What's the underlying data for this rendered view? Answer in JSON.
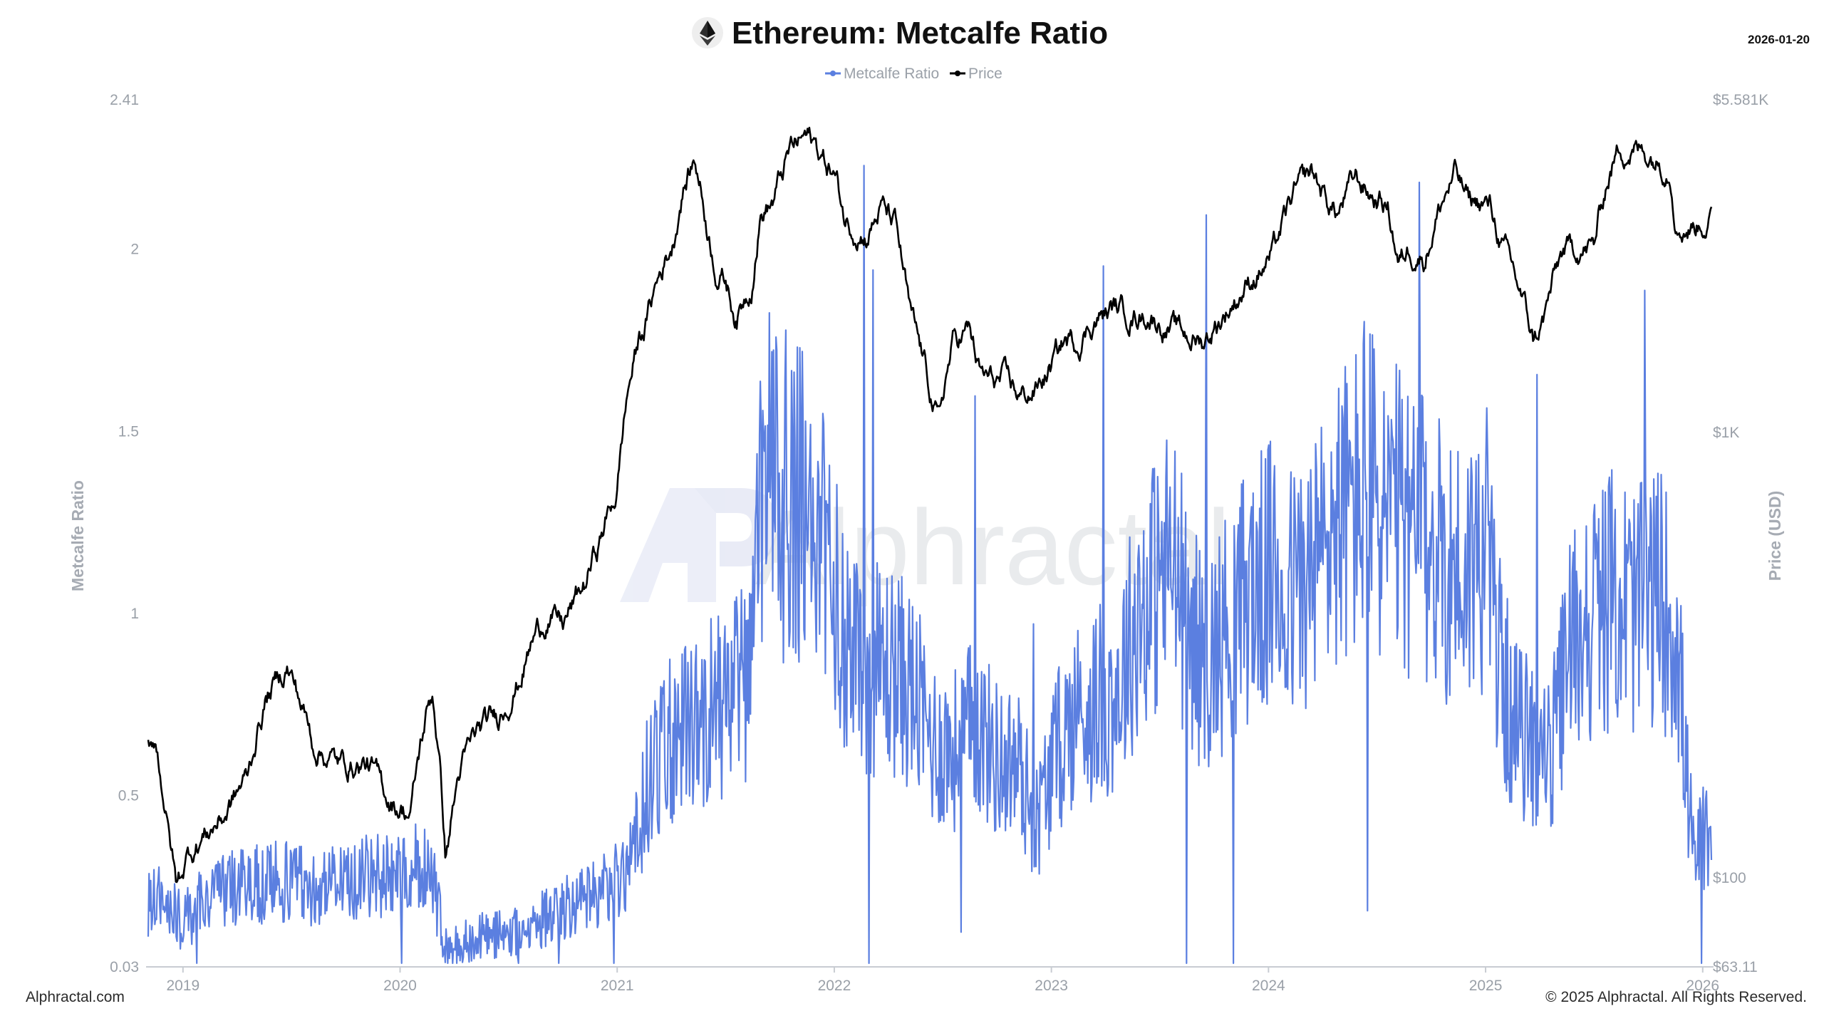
{
  "header": {
    "title": "Ethereum: Metcalfe Ratio",
    "date": "2026-01-20",
    "logo_icon": "ethereum-diamond-icon"
  },
  "watermark": {
    "text": "Alphractal",
    "logo_icon": "ap-monogram-icon"
  },
  "footer": {
    "left": "Alphractal.com",
    "right": "© 2025 Alphractal. All Rights Reserved."
  },
  "colors": {
    "ratio": "#5b7fe0",
    "price": "#000000",
    "axis": "#c8ccd2",
    "tick": "#9aa0a8"
  },
  "chart_data": {
    "type": "line",
    "title": "Ethereum: Metcalfe Ratio",
    "legend": [
      "Metcalfe Ratio",
      "Price"
    ],
    "legend_position": "top-center",
    "grid": false,
    "x_range": [
      2018.83,
      2026.05
    ],
    "x_ticks": [
      {
        "value": 2019,
        "label": "2019"
      },
      {
        "value": 2020,
        "label": "2020"
      },
      {
        "value": 2021,
        "label": "2021"
      },
      {
        "value": 2022,
        "label": "2022"
      },
      {
        "value": 2023,
        "label": "2023"
      },
      {
        "value": 2024,
        "label": "2024"
      },
      {
        "value": 2025,
        "label": "2025"
      },
      {
        "value": 2026,
        "label": "2026"
      }
    ],
    "y_left": {
      "label": "Metcalfe Ratio",
      "range": [
        0.03,
        2.41
      ],
      "ticks": [
        {
          "value": 0.03,
          "label": "0.03"
        },
        {
          "value": 0.5,
          "label": "0.5"
        },
        {
          "value": 1,
          "label": "1"
        },
        {
          "value": 1.5,
          "label": "1.5"
        },
        {
          "value": 2,
          "label": "2"
        },
        {
          "value": 2.41,
          "label": "2.41"
        }
      ]
    },
    "y_right": {
      "label": "Price (USD)",
      "scale": "log",
      "range": [
        63.11,
        5581
      ],
      "ticks": [
        {
          "value": 63.11,
          "label": "$63.11"
        },
        {
          "value": 100,
          "label": "$100"
        },
        {
          "value": 1000,
          "label": "$1K"
        },
        {
          "value": 5581,
          "label": "$5.581K"
        }
      ]
    },
    "series": [
      {
        "name": "Metcalfe Ratio",
        "axis": "left",
        "x": [
          2018.84,
          2018.9,
          2019.0,
          2019.1,
          2019.2,
          2019.3,
          2019.4,
          2019.5,
          2019.6,
          2019.7,
          2019.8,
          2019.9,
          2020.0,
          2020.08,
          2020.15,
          2020.21,
          2020.3,
          2020.4,
          2020.5,
          2020.6,
          2020.7,
          2020.8,
          2020.9,
          2021.0,
          2021.08,
          2021.15,
          2021.25,
          2021.35,
          2021.45,
          2021.55,
          2021.62,
          2021.65,
          2021.7,
          2021.75,
          2021.8,
          2021.88,
          2021.95,
          2022.05,
          2022.15,
          2022.25,
          2022.35,
          2022.45,
          2022.55,
          2022.65,
          2022.75,
          2022.85,
          2022.93,
          2023.0,
          2023.1,
          2023.2,
          2023.3,
          2023.4,
          2023.5,
          2023.55,
          2023.62,
          2023.7,
          2023.8,
          2023.9,
          2024.0,
          2024.1,
          2024.2,
          2024.3,
          2024.4,
          2024.45,
          2024.5,
          2024.6,
          2024.7,
          2024.8,
          2024.9,
          2025.0,
          2025.06,
          2025.12,
          2025.2,
          2025.3,
          2025.4,
          2025.5,
          2025.6,
          2025.7,
          2025.8,
          2025.88,
          2025.92,
          2025.96,
          2026.0,
          2026.04
        ],
        "y": [
          0.2,
          0.22,
          0.15,
          0.22,
          0.24,
          0.25,
          0.26,
          0.27,
          0.25,
          0.26,
          0.27,
          0.28,
          0.3,
          0.3,
          0.28,
          0.08,
          0.1,
          0.12,
          0.12,
          0.14,
          0.18,
          0.2,
          0.22,
          0.28,
          0.35,
          0.55,
          0.65,
          0.7,
          0.75,
          0.78,
          0.82,
          1.2,
          1.45,
          1.3,
          1.35,
          1.25,
          1.15,
          0.95,
          0.85,
          0.85,
          0.8,
          0.65,
          0.62,
          0.7,
          0.6,
          0.58,
          0.42,
          0.58,
          0.72,
          0.75,
          0.78,
          1.0,
          1.1,
          1.15,
          1.0,
          0.85,
          0.95,
          1.05,
          1.1,
          1.05,
          1.1,
          1.25,
          1.3,
          1.4,
          1.3,
          1.25,
          1.2,
          1.15,
          1.1,
          1.2,
          0.9,
          0.7,
          0.65,
          0.6,
          0.95,
          1.0,
          1.05,
          1.0,
          1.05,
          0.95,
          0.6,
          0.3,
          0.4,
          0.32
        ]
      },
      {
        "name": "Price",
        "axis": "right",
        "x": [
          2018.84,
          2018.87,
          2018.93,
          2018.97,
          2019.03,
          2019.1,
          2019.2,
          2019.3,
          2019.38,
          2019.48,
          2019.6,
          2019.72,
          2019.85,
          2019.95,
          2020.05,
          2020.12,
          2020.15,
          2020.21,
          2020.27,
          2020.35,
          2020.45,
          2020.55,
          2020.62,
          2020.68,
          2020.75,
          2020.85,
          2020.92,
          2021.0,
          2021.05,
          2021.1,
          2021.13,
          2021.2,
          2021.26,
          2021.3,
          2021.36,
          2021.42,
          2021.46,
          2021.5,
          2021.55,
          2021.62,
          2021.66,
          2021.72,
          2021.8,
          2021.86,
          2021.9,
          2021.95,
          2022.0,
          2022.05,
          2022.15,
          2022.22,
          2022.28,
          2022.35,
          2022.45,
          2022.48,
          2022.55,
          2022.62,
          2022.67,
          2022.72,
          2022.78,
          2022.86,
          2022.93,
          2023.0,
          2023.06,
          2023.12,
          2023.2,
          2023.25,
          2023.3,
          2023.36,
          2023.45,
          2023.55,
          2023.62,
          2023.7,
          2023.78,
          2023.85,
          2023.95,
          2024.02,
          2024.12,
          2024.2,
          2024.27,
          2024.32,
          2024.4,
          2024.48,
          2024.55,
          2024.6,
          2024.65,
          2024.72,
          2024.8,
          2024.86,
          2024.92,
          2024.96,
          2025.02,
          2025.08,
          2025.14,
          2025.22,
          2025.27,
          2025.35,
          2025.42,
          2025.5,
          2025.56,
          2025.62,
          2025.7,
          2025.76,
          2025.85,
          2025.88,
          2025.94,
          2026.0,
          2026.04
        ],
        "y": [
          200,
          210,
          130,
          95,
          115,
          125,
          140,
          170,
          250,
          300,
          200,
          180,
          180,
          150,
          140,
          230,
          260,
          110,
          170,
          210,
          230,
          280,
          350,
          390,
          370,
          450,
          570,
          740,
          1250,
          1600,
          1750,
          2300,
          2700,
          3500,
          4100,
          2800,
          2300,
          2200,
          1800,
          2200,
          3100,
          3300,
          4300,
          4600,
          4500,
          4100,
          3800,
          3000,
          2800,
          3200,
          2900,
          1800,
          1200,
          1050,
          1600,
          1700,
          1350,
          1300,
          1300,
          1200,
          1250,
          1400,
          1600,
          1600,
          1800,
          1850,
          1900,
          1850,
          1850,
          1700,
          1650,
          1600,
          1800,
          2000,
          2300,
          2500,
          3400,
          3800,
          3300,
          3100,
          3700,
          3400,
          3200,
          2400,
          2600,
          2500,
          3300,
          3800,
          3300,
          3300,
          3200,
          2600,
          2200,
          1600,
          1800,
          2500,
          2600,
          2600,
          3700,
          4400,
          4300,
          4200,
          4000,
          3000,
          2900,
          3000,
          3000
        ]
      }
    ]
  }
}
